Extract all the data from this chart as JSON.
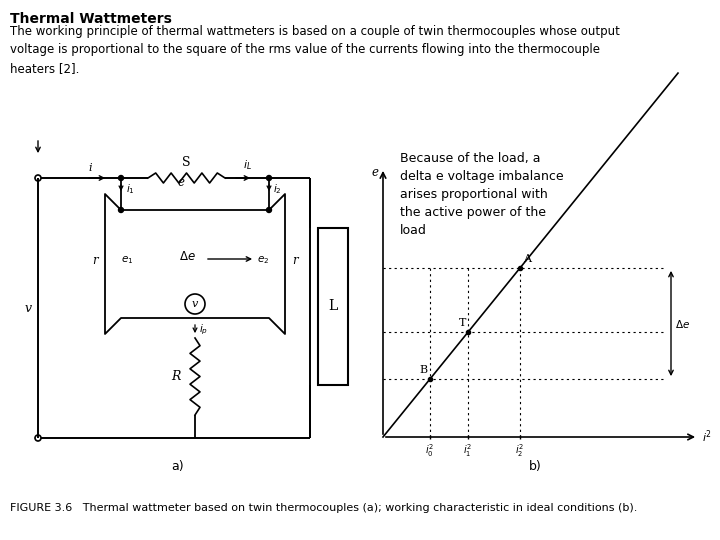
{
  "title": "Thermal Wattmeters",
  "body_text": "The working principle of thermal wattmeters is based on a couple of twin thermocouples whose output\nvoltage is proportional to the square of the rms value of the currents flowing into the thermocouple\nheaters [2].",
  "annotation": "Because of the load, a\ndelta e voltage imbalance\narises proportional with\nthe active power of the\nload",
  "caption": "FIGURE 3.6   Thermal wattmeter based on twin thermocouples (a); working characteristic in ideal conditions (b).",
  "label_a": "a)",
  "label_b": "b)",
  "bg_color": "#ffffff",
  "text_color": "#000000"
}
